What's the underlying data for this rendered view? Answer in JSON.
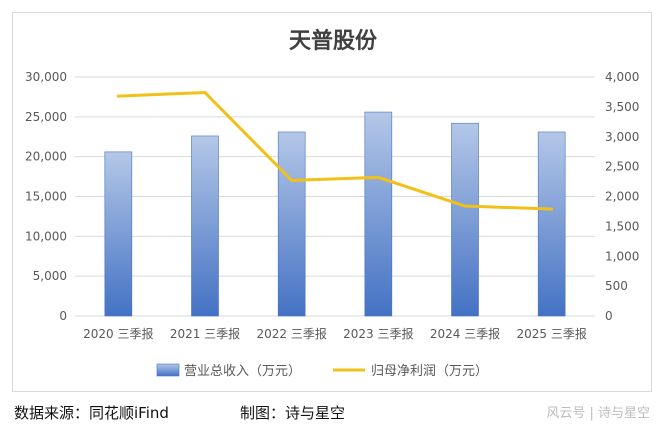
{
  "footer": {
    "source": "数据来源：同花顺iFind",
    "credit": "制图：诗与星空",
    "watermark": "风云号 | 诗与星空"
  },
  "colors": {
    "bar_top": "#b4c7e7",
    "bar_bottom": "#4472c4",
    "line": "#f2c118",
    "grid": "#d9d9d9"
  },
  "chart_data": {
    "type": "bar",
    "title": "天普股份",
    "categories": [
      "2020 三季报",
      "2021 三季报",
      "2022 三季报",
      "2023 三季报",
      "2024 三季报",
      "2025 三季报"
    ],
    "series": [
      {
        "name": "营业总收入（万元）",
        "type": "bar",
        "axis": "left",
        "values": [
          20600,
          22600,
          23100,
          25600,
          24200,
          23100
        ]
      },
      {
        "name": "归母净利润（万元）",
        "type": "line",
        "axis": "right",
        "values": [
          3680,
          3740,
          2270,
          2320,
          1840,
          1790
        ]
      }
    ],
    "y_left": {
      "min": 0,
      "max": 30000,
      "step": 5000,
      "ticks": [
        "0",
        "5,000",
        "10,000",
        "15,000",
        "20,000",
        "25,000",
        "30,000"
      ]
    },
    "y_right": {
      "min": 0,
      "max": 4000,
      "step": 500,
      "ticks": [
        "0",
        "500",
        "1,000",
        "1,500",
        "2,000",
        "2,500",
        "3,000",
        "3,500",
        "4,000"
      ]
    },
    "grid": true,
    "legend": "bottom"
  }
}
